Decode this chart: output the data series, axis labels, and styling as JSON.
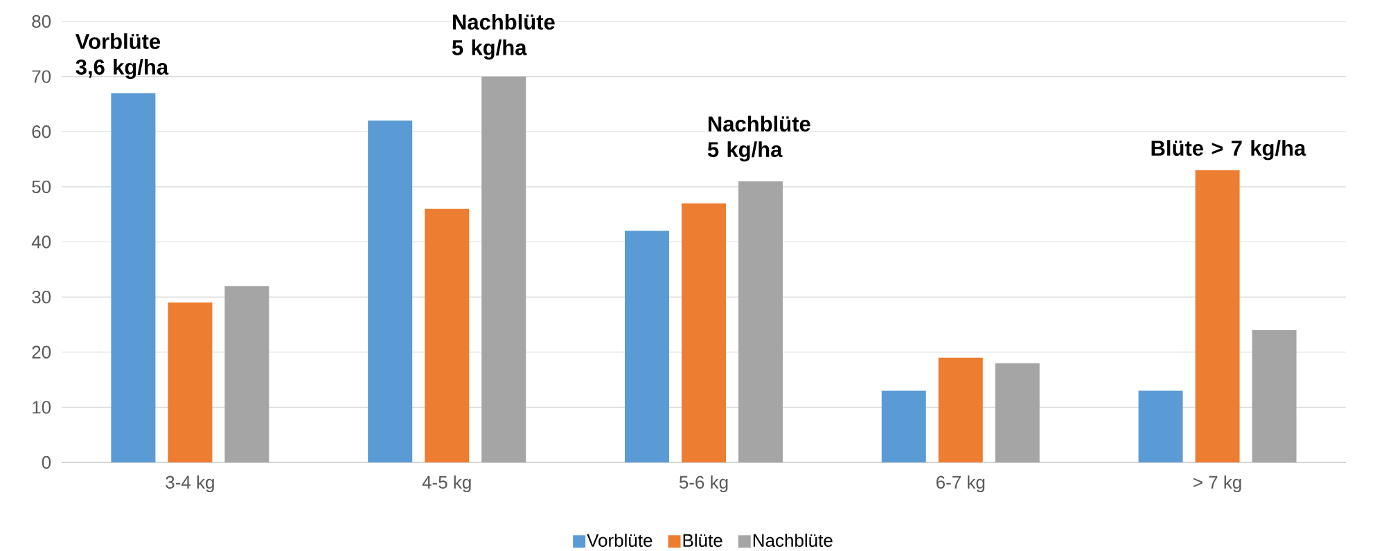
{
  "chart_data": {
    "type": "bar",
    "categories": [
      "3-4 kg",
      "4-5 kg",
      "5-6 kg",
      "6-7 kg",
      "> 7 kg"
    ],
    "series": [
      {
        "name": "Vorblüte",
        "color": "#5b9bd5",
        "values": [
          67,
          62,
          42,
          13,
          13
        ]
      },
      {
        "name": "Blüte",
        "color": "#ed7d31",
        "values": [
          29,
          46,
          47,
          19,
          53
        ]
      },
      {
        "name": "Nachblüte",
        "color": "#a5a5a5",
        "values": [
          32,
          70,
          51,
          18,
          24
        ]
      }
    ],
    "ylim": [
      0,
      80
    ],
    "yticks": [
      0,
      10,
      20,
      30,
      40,
      50,
      60,
      70,
      80
    ],
    "grid": "y",
    "legend": "bottom",
    "annotations": [
      "Vorblüte 3,6 kg/ha",
      "Nachblüte 5 kg/ha",
      "Nachblüte 5 kg/ha",
      "Blüte > 7 kg/ha"
    ]
  }
}
